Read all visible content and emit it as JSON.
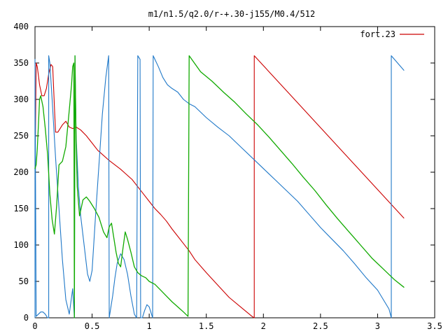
{
  "chart_data": {
    "type": "line",
    "title": "m1/n1.5/q2.0/r-+.30-j155/M0.4/512",
    "xlabel": "",
    "ylabel": "",
    "xlim": [
      0,
      3.5
    ],
    "ylim": [
      0,
      400
    ],
    "xticks": [
      "0",
      "0.5",
      "1",
      "1.5",
      "2",
      "2.5",
      "3",
      "3.5"
    ],
    "yticks": [
      "0",
      "50",
      "100",
      "150",
      "200",
      "250",
      "300",
      "350",
      "400"
    ],
    "grid": false,
    "legend": {
      "position": "top-right",
      "entries": [
        "fort.23"
      ]
    },
    "series": [
      {
        "name": "fort.23",
        "color": "#cc0000",
        "segments": [
          [
            [
              0.0,
              190
            ],
            [
              0.01,
              350
            ],
            [
              0.02,
              345
            ],
            [
              0.04,
              320
            ],
            [
              0.06,
              305
            ],
            [
              0.08,
              305
            ],
            [
              0.1,
              315
            ],
            [
              0.12,
              335
            ],
            [
              0.14,
              348
            ],
            [
              0.155,
              345
            ],
            [
              0.17,
              290
            ],
            [
              0.18,
              255
            ],
            [
              0.2,
              255
            ],
            [
              0.24,
              265
            ],
            [
              0.27,
              270
            ],
            [
              0.3,
              262
            ],
            [
              0.33,
              260
            ],
            [
              0.36,
              262
            ],
            [
              0.4,
              258
            ],
            [
              0.45,
              250
            ],
            [
              0.5,
              240
            ],
            [
              0.55,
              230
            ],
            [
              0.6,
              223
            ],
            [
              0.65,
              216
            ],
            [
              0.7,
              210
            ],
            [
              0.75,
              204
            ],
            [
              0.8,
              197
            ],
            [
              0.85,
              190
            ],
            [
              0.9,
              180
            ],
            [
              0.95,
              170
            ],
            [
              1.0,
              160
            ],
            [
              1.05,
              150
            ],
            [
              1.1,
              142
            ],
            [
              1.15,
              133
            ],
            [
              1.2,
              122
            ],
            [
              1.25,
              112
            ],
            [
              1.3,
              102
            ],
            [
              1.35,
              92
            ],
            [
              1.4,
              80
            ],
            [
              1.5,
              62
            ],
            [
              1.6,
              45
            ],
            [
              1.7,
              28
            ],
            [
              1.8,
              15
            ],
            [
              1.9,
              2
            ],
            [
              1.92,
              0
            ]
          ],
          [
            [
              1.92,
              0
            ],
            [
              1.92,
              360
            ],
            [
              3.23,
              137
            ]
          ]
        ]
      },
      {
        "name": "",
        "color": "#1f78c8",
        "segments": [
          [
            [
              0.0,
              0
            ],
            [
              0.0,
              355
            ],
            [
              0.01,
              2
            ],
            [
              0.03,
              5
            ],
            [
              0.05,
              8
            ],
            [
              0.07,
              8
            ],
            [
              0.09,
              5
            ],
            [
              0.11,
              0
            ],
            [
              0.12,
              0
            ],
            [
              0.12,
              360
            ],
            [
              0.13,
              350
            ],
            [
              0.15,
              300
            ],
            [
              0.18,
              220
            ],
            [
              0.21,
              150
            ],
            [
              0.24,
              80
            ],
            [
              0.27,
              25
            ],
            [
              0.3,
              5
            ],
            [
              0.33,
              40
            ],
            [
              0.345,
              0
            ],
            [
              0.35,
              360
            ],
            [
              0.36,
              250
            ],
            [
              0.38,
              180
            ],
            [
              0.4,
              140
            ],
            [
              0.43,
              100
            ],
            [
              0.46,
              60
            ],
            [
              0.48,
              50
            ],
            [
              0.5,
              65
            ],
            [
              0.53,
              140
            ],
            [
              0.56,
              210
            ],
            [
              0.59,
              280
            ],
            [
              0.62,
              330
            ],
            [
              0.645,
              360
            ],
            [
              0.65,
              0
            ],
            [
              0.68,
              30
            ],
            [
              0.7,
              55
            ],
            [
              0.72,
              75
            ],
            [
              0.75,
              88
            ],
            [
              0.78,
              80
            ],
            [
              0.81,
              60
            ],
            [
              0.84,
              30
            ],
            [
              0.87,
              5
            ],
            [
              0.89,
              0
            ],
            [
              0.9,
              360
            ],
            [
              0.92,
              355
            ],
            [
              0.925,
              0
            ],
            [
              0.94,
              0
            ],
            [
              0.96,
              10
            ],
            [
              0.98,
              18
            ],
            [
              1.0,
              15
            ],
            [
              1.02,
              5
            ],
            [
              1.03,
              0
            ],
            [
              1.035,
              360
            ],
            [
              1.08,
              345
            ],
            [
              1.12,
              330
            ],
            [
              1.16,
              320
            ],
            [
              1.2,
              315
            ],
            [
              1.25,
              310
            ],
            [
              1.3,
              300
            ],
            [
              1.35,
              294
            ],
            [
              1.4,
              290
            ],
            [
              1.5,
              275
            ],
            [
              1.6,
              262
            ],
            [
              1.7,
              250
            ],
            [
              1.8,
              235
            ],
            [
              1.9,
              220
            ],
            [
              2.0,
              205
            ],
            [
              2.1,
              190
            ],
            [
              2.2,
              175
            ],
            [
              2.3,
              160
            ],
            [
              2.4,
              142
            ],
            [
              2.5,
              124
            ],
            [
              2.6,
              108
            ],
            [
              2.7,
              92
            ],
            [
              2.8,
              74
            ],
            [
              2.9,
              55
            ],
            [
              3.0,
              38
            ],
            [
              3.1,
              12
            ],
            [
              3.12,
              0
            ],
            [
              3.12,
              360
            ],
            [
              3.23,
              340
            ]
          ]
        ]
      },
      {
        "name": "",
        "color": "#11aa00",
        "segments": [
          [
            [
              0.0,
              205
            ],
            [
              0.01,
              210
            ],
            [
              0.02,
              232
            ],
            [
              0.03,
              265
            ],
            [
              0.04,
              300
            ],
            [
              0.05,
              305
            ],
            [
              0.07,
              290
            ],
            [
              0.09,
              260
            ],
            [
              0.11,
              225
            ],
            [
              0.13,
              170
            ],
            [
              0.15,
              135
            ],
            [
              0.17,
              115
            ],
            [
              0.19,
              155
            ],
            [
              0.21,
              210
            ],
            [
              0.24,
              215
            ],
            [
              0.27,
              235
            ],
            [
              0.3,
              285
            ],
            [
              0.32,
              320
            ],
            [
              0.33,
              345
            ],
            [
              0.34,
              350
            ],
            [
              0.345,
              0
            ],
            [
              0.35,
              360
            ],
            [
              0.36,
              245
            ],
            [
              0.37,
              180
            ],
            [
              0.39,
              140
            ],
            [
              0.42,
              162
            ],
            [
              0.45,
              166
            ],
            [
              0.48,
              160
            ],
            [
              0.52,
              150
            ],
            [
              0.56,
              138
            ],
            [
              0.6,
              118
            ],
            [
              0.63,
              110
            ],
            [
              0.65,
              125
            ],
            [
              0.67,
              130
            ],
            [
              0.69,
              110
            ],
            [
              0.71,
              90
            ],
            [
              0.73,
              75
            ],
            [
              0.75,
              70
            ],
            [
              0.77,
              95
            ],
            [
              0.79,
              118
            ],
            [
              0.81,
              108
            ],
            [
              0.84,
              90
            ],
            [
              0.87,
              70
            ],
            [
              0.9,
              62
            ],
            [
              0.93,
              58
            ],
            [
              0.97,
              55
            ],
            [
              1.0,
              50
            ],
            [
              1.05,
              46
            ],
            [
              1.1,
              38
            ],
            [
              1.15,
              30
            ],
            [
              1.2,
              22
            ],
            [
              1.25,
              15
            ],
            [
              1.3,
              8
            ],
            [
              1.34,
              2
            ],
            [
              1.35,
              360
            ],
            [
              1.45,
              338
            ],
            [
              1.55,
              325
            ],
            [
              1.65,
              310
            ],
            [
              1.75,
              296
            ],
            [
              1.85,
              280
            ],
            [
              1.95,
              265
            ],
            [
              2.05,
              248
            ],
            [
              2.15,
              230
            ],
            [
              2.25,
              212
            ],
            [
              2.35,
              193
            ],
            [
              2.45,
              175
            ],
            [
              2.55,
              155
            ],
            [
              2.65,
              136
            ],
            [
              2.75,
              118
            ],
            [
              2.85,
              100
            ],
            [
              2.95,
              82
            ],
            [
              3.05,
              67
            ],
            [
              3.15,
              52
            ],
            [
              3.23,
              42
            ]
          ]
        ]
      }
    ]
  }
}
